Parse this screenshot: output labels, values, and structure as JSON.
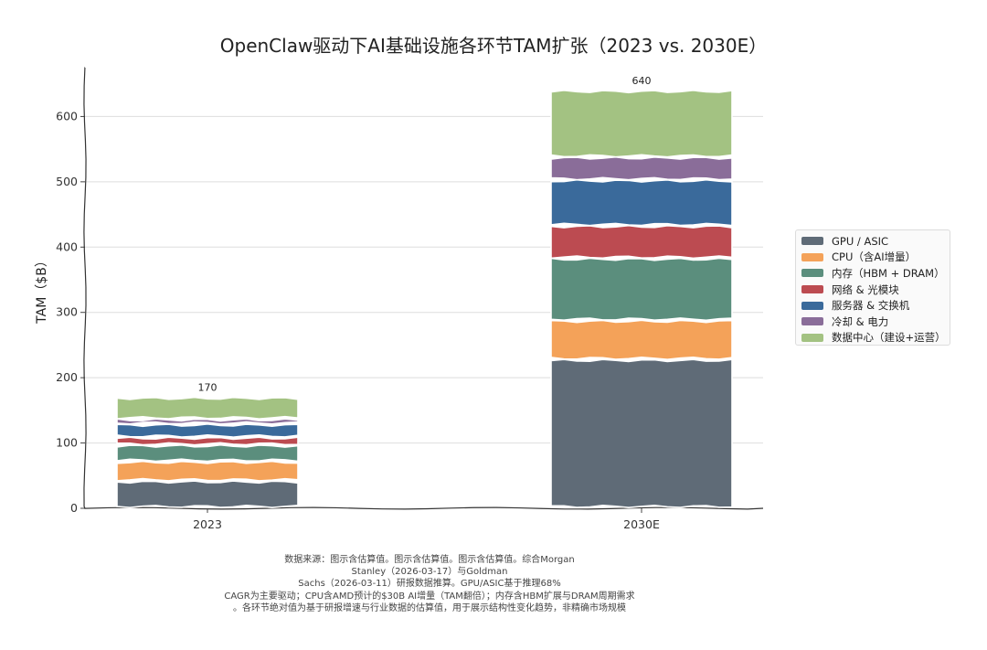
{
  "chart_data": {
    "type": "bar",
    "stacked": true,
    "title": "OpenClaw驱动下AI基础设施各环节TAM扩张（2023 vs. 2030E）",
    "xlabel": "",
    "ylabel": "TAM（$B）",
    "ylim": [
      0,
      672
    ],
    "yticks": [
      0,
      100,
      200,
      300,
      400,
      500,
      600
    ],
    "categories": [
      "2023",
      "2030E"
    ],
    "series": [
      {
        "name": "GPU / ASIC",
        "color": "#5f6b77",
        "values": [
          42,
          228
        ]
      },
      {
        "name": "CPU（含AI增量）",
        "color": "#f4a259",
        "values": [
          30,
          60
        ]
      },
      {
        "name": "内存（HBM + DRAM）",
        "color": "#5b8e7d",
        "values": [
          25,
          95
        ]
      },
      {
        "name": "网络 & 光模块",
        "color": "#bc4b51",
        "values": [
          12,
          50
        ]
      },
      {
        "name": "服务器 & 交换机",
        "color": "#3a6a9b",
        "values": [
          20,
          70
        ]
      },
      {
        "name": "冷却 & 电力",
        "color": "#8a6d99",
        "values": [
          8,
          35
        ]
      },
      {
        "name": "数据中心（建设+运营）",
        "color": "#a3c282",
        "values": [
          33,
          102
        ]
      }
    ],
    "totals": [
      "170",
      "640"
    ],
    "grid": true,
    "legend": "right"
  },
  "footnote": [
    "数据来源：图示含估算值。图示含估算值。图示含估算值。综合Morgan",
    "Stanley（2026-03-17）与Goldman",
    "Sachs（2026-03-11）研报数据推算。GPU/ASIC基于推理68%",
    "CAGR为主要驱动；CPU含AMD预计的$30B AI增量（TAM翻倍）；内存含HBM扩展与DRAM周期需求",
    "。各环节绝对值为基于研报增速与行业数据的估算值，用于展示结构性变化趋势，非精确市场规模"
  ]
}
